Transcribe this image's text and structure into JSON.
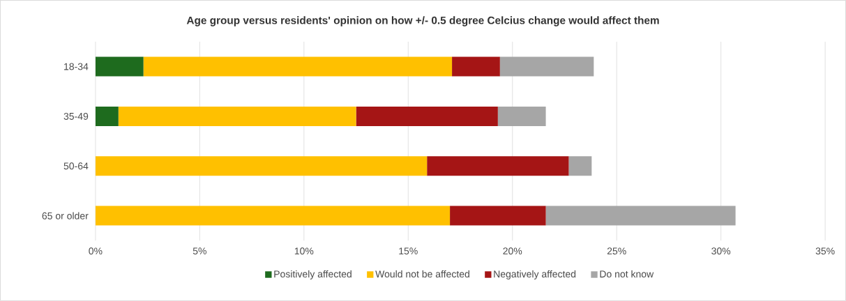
{
  "chart_data": {
    "type": "bar",
    "orientation": "horizontal",
    "stacked": true,
    "title": "Age group versus residents' opinion on how +/- 0.5 degree Celcius change would affect them",
    "categories": [
      "18-34",
      "35-49",
      "50-64",
      "65 or older"
    ],
    "series": [
      {
        "name": "Positively affected",
        "color": "#1e6b1e",
        "values": [
          2.3,
          1.1,
          0,
          0
        ]
      },
      {
        "name": "Would not be affected",
        "color": "#ffc000",
        "values": [
          14.8,
          11.4,
          15.9,
          17.0
        ]
      },
      {
        "name": "Negatively affected",
        "color": "#a51515",
        "values": [
          2.3,
          6.8,
          6.8,
          4.6
        ]
      },
      {
        "name": "Do not know",
        "color": "#a6a6a6",
        "values": [
          4.5,
          2.3,
          1.1,
          9.1
        ]
      }
    ],
    "xlim": [
      0,
      35
    ],
    "xticks": [
      {
        "value": 0,
        "label": "0%"
      },
      {
        "value": 5,
        "label": "5%"
      },
      {
        "value": 10,
        "label": "10%"
      },
      {
        "value": 15,
        "label": "15%"
      },
      {
        "value": 20,
        "label": "20%"
      },
      {
        "value": 25,
        "label": "25%"
      },
      {
        "value": 30,
        "label": "30%"
      },
      {
        "value": 35,
        "label": "35%"
      }
    ],
    "grid": "x",
    "legend": "bottom"
  }
}
